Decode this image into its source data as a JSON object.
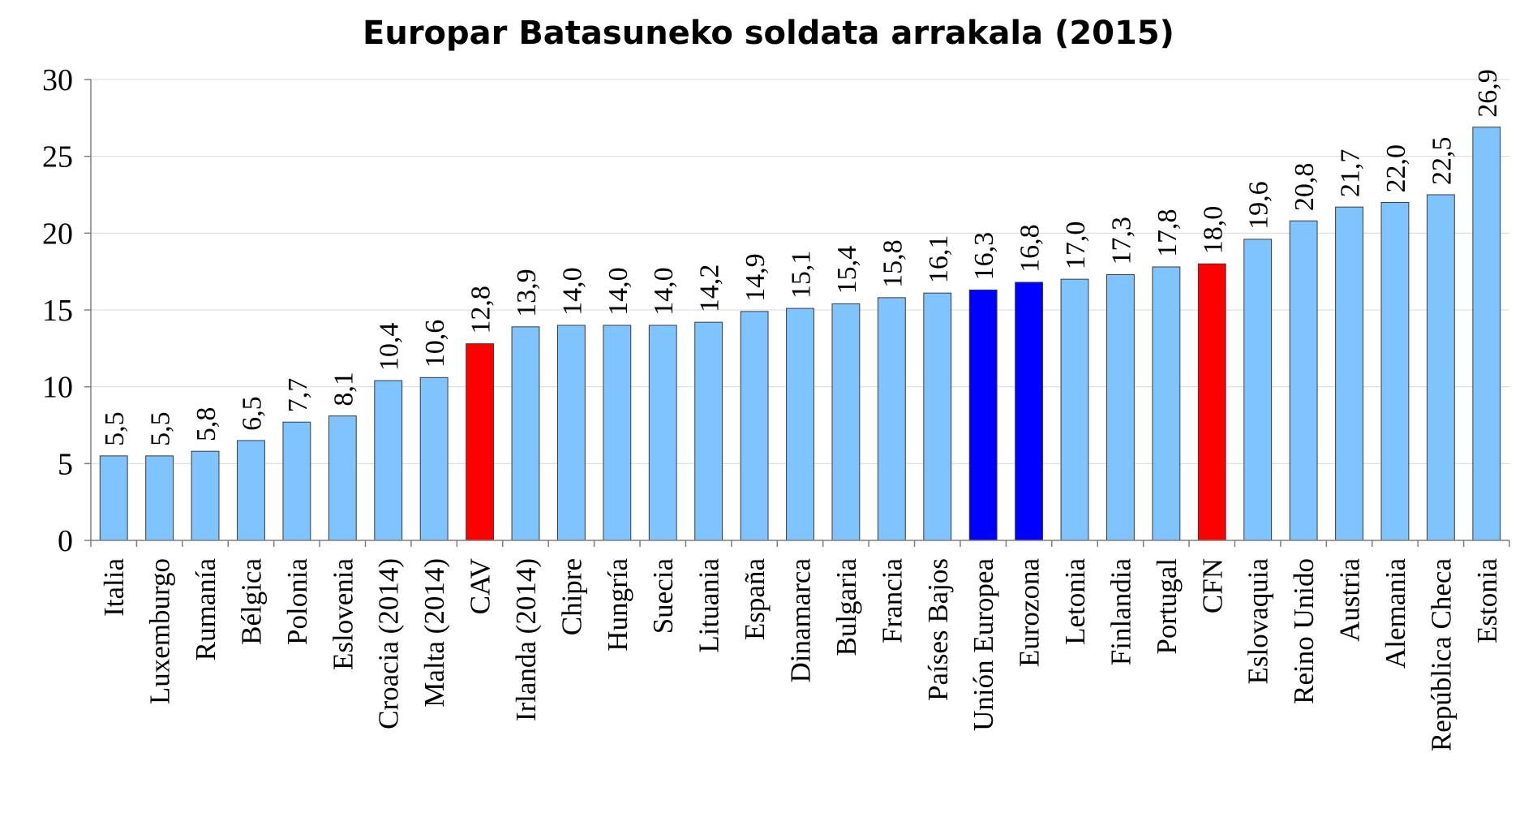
{
  "chart_data": {
    "type": "bar",
    "title": "Europar Batasuneko soldata arrakala (2015)",
    "xlabel": "",
    "ylabel": "",
    "ylim": [
      0,
      30
    ],
    "yticks": [
      0,
      5,
      10,
      15,
      20,
      25,
      30
    ],
    "grid": true,
    "legend": "none",
    "colors": {
      "default": "#80C4FF",
      "highlight_red": "#FF0000",
      "highlight_blue": "#0000FF",
      "bar_outline": "#3a3a3a",
      "axis": "#7f7f7f",
      "grid": "#d9d9d9"
    },
    "categories": [
      "Italia",
      "Luxemburgo",
      "Rumanía",
      "Bélgica",
      "Polonia",
      "Eslovenia",
      "Croacia (2014)",
      "Malta (2014)",
      "CAV",
      "Irlanda (2014)",
      "Chipre",
      "Hungría",
      "Suecia",
      "Lituania",
      "España",
      "Dinamarca",
      "Bulgaria",
      "Francia",
      "Países Bajos",
      "Unión Europea",
      "Eurozona",
      "Letonia",
      "Finlandia",
      "Portugal",
      "CFN",
      "Eslovaquia",
      "Reino Unido",
      "Austria",
      "Alemania",
      "República Checa",
      "Estonia"
    ],
    "values": [
      5.5,
      5.5,
      5.8,
      6.5,
      7.7,
      8.1,
      10.4,
      10.6,
      12.8,
      13.9,
      14.0,
      14.0,
      14.0,
      14.2,
      14.9,
      15.1,
      15.4,
      15.8,
      16.1,
      16.3,
      16.8,
      17.0,
      17.3,
      17.8,
      18.0,
      19.6,
      20.8,
      21.7,
      22.0,
      22.5,
      26.9
    ],
    "data_labels": [
      "5,5",
      "5,5",
      "5,8",
      "6,5",
      "7,7",
      "8,1",
      "10,4",
      "10,6",
      "12,8",
      "13,9",
      "14,0",
      "14,0",
      "14,0",
      "14,2",
      "14,9",
      "15,1",
      "15,4",
      "15,8",
      "16,1",
      "16,3",
      "16,8",
      "17,0",
      "17,3",
      "17,8",
      "18,0",
      "19,6",
      "20,8",
      "21,7",
      "22,0",
      "22,5",
      "26,9"
    ],
    "bar_colors": [
      "default",
      "default",
      "default",
      "default",
      "default",
      "default",
      "default",
      "default",
      "highlight_red",
      "default",
      "default",
      "default",
      "default",
      "default",
      "default",
      "default",
      "default",
      "default",
      "default",
      "highlight_blue",
      "highlight_blue",
      "default",
      "default",
      "default",
      "highlight_red",
      "default",
      "default",
      "default",
      "default",
      "default",
      "default"
    ]
  }
}
